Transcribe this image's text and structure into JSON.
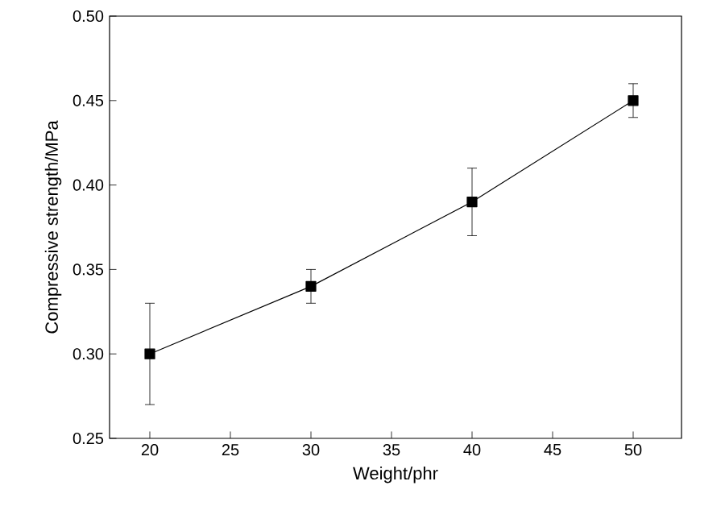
{
  "chart_data": {
    "type": "line",
    "xlabel": "Weight/phr",
    "ylabel": "Compressive strength/MPa",
    "x": [
      20,
      30,
      40,
      50
    ],
    "series": [
      {
        "color": "#000000",
        "values": [
          0.3,
          0.34,
          0.39,
          0.45
        ],
        "errors": [
          0.03,
          0.01,
          0.02,
          0.01
        ]
      }
    ],
    "xlim": [
      17.5,
      53
    ],
    "xticks": [
      20,
      25,
      30,
      35,
      40,
      45,
      50
    ],
    "ylim": [
      0.25,
      0.5
    ],
    "yticks": [
      {
        "value": 0.25,
        "label": "0.25"
      },
      {
        "value": 0.3,
        "label": "0.30"
      },
      {
        "value": 0.35,
        "label": "0.35"
      },
      {
        "value": 0.4,
        "label": "0.40"
      },
      {
        "value": 0.45,
        "label": "0.45"
      },
      {
        "value": 0.5,
        "label": "0.50"
      }
    ],
    "marker": "square",
    "line_style": "solid",
    "grid": false
  }
}
